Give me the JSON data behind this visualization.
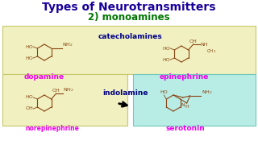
{
  "title": "Types of Neurotransmitters",
  "subtitle": "2) monoamines",
  "title_color": "#1a0099",
  "subtitle_color": "#007700",
  "bg_color": "#ffffff",
  "box1_color": "#f0f0c0",
  "box2_color": "#b8ede6",
  "catecholamines_color": "#00008B",
  "indolamine_color": "#000080",
  "label_color": "#ee00ee",
  "struct_color": "#8B4513",
  "dopamine_label": "dopamine",
  "epinephrine_label": "epinephrine",
  "norepinephrine_label": "norepinephrine",
  "serotonin_label": "serotonin",
  "catecholamines_label": "catecholamines",
  "indolamine_label": "indolamine"
}
